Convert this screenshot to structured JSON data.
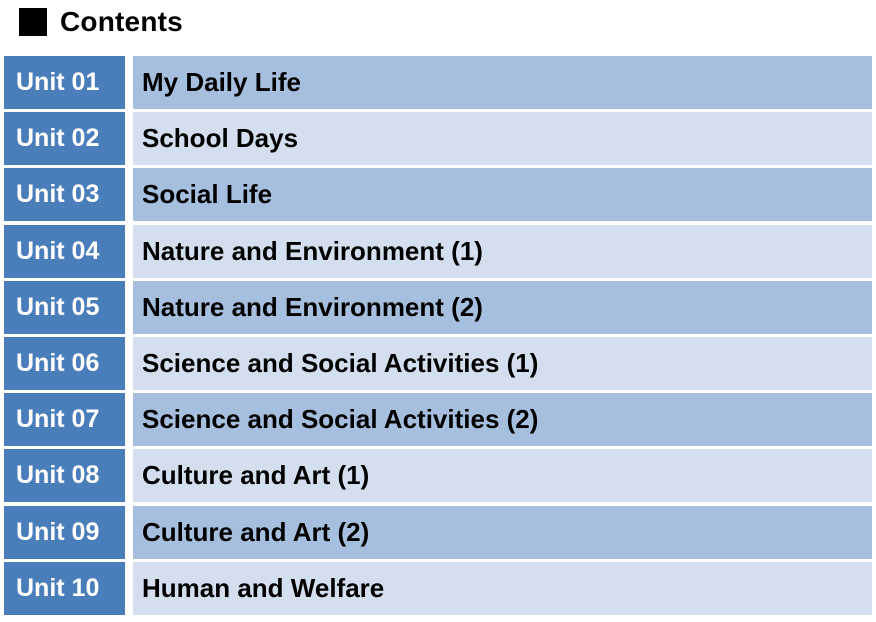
{
  "header": {
    "title": "Contents",
    "icon": "square-bullet-icon"
  },
  "colors": {
    "unit_bg": "#4a7ebb",
    "row_dark": "#a7bfde",
    "row_light": "#d3dfee"
  },
  "units": [
    {
      "unit": "Unit 01",
      "title": "My Daily Life"
    },
    {
      "unit": "Unit 02",
      "title": "School Days"
    },
    {
      "unit": "Unit 03",
      "title": "Social Life"
    },
    {
      "unit": "Unit 04",
      "title": "Nature and Environment (1)"
    },
    {
      "unit": "Unit 05",
      "title": "Nature and Environment (2)"
    },
    {
      "unit": "Unit 06",
      "title": "Science and Social Activities (1)"
    },
    {
      "unit": "Unit 07",
      "title": "Science and Social Activities (2)"
    },
    {
      "unit": "Unit 08",
      "title": "Culture and Art (1)"
    },
    {
      "unit": "Unit 09",
      "title": "Culture and Art (2)"
    },
    {
      "unit": "Unit 10",
      "title": "Human and Welfare"
    }
  ]
}
